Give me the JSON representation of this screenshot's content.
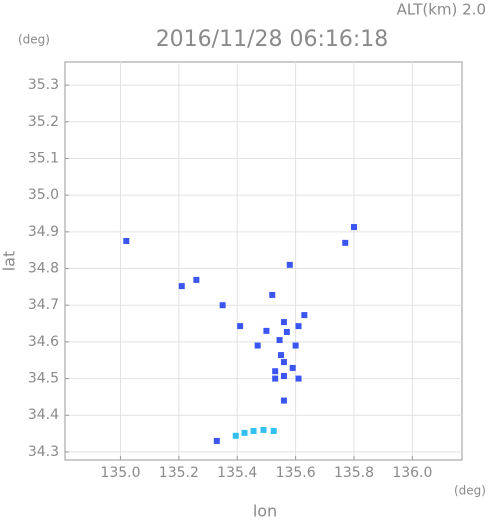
{
  "chart_data": {
    "type": "scatter",
    "title": "2016/11/28 06:16:18",
    "annotation": "ALT(km) 2.0",
    "xlabel": "lon",
    "ylabel": "lat",
    "x_unit": "(deg)",
    "y_unit": "(deg)",
    "xlim": [
      134.81,
      136.17
    ],
    "ylim": [
      34.278,
      35.363
    ],
    "xticks": [
      {
        "value": 135.0,
        "label": "135.0"
      },
      135.2,
      135.4,
      135.6,
      135.8,
      {
        "value": 136.0,
        "label": "136.0"
      }
    ],
    "yticks": [
      34.3,
      34.4,
      34.5,
      34.6,
      34.7,
      34.8,
      34.9,
      {
        "value": 35.0,
        "label": "35.0"
      },
      35.1,
      35.2,
      35.3
    ],
    "grid": true,
    "series": [
      {
        "color": "#3a55f0",
        "x": [
          135.02,
          135.21,
          135.26,
          135.8,
          135.77,
          135.58,
          135.35,
          135.52,
          135.5,
          135.56,
          135.545,
          135.55,
          135.57,
          135.61,
          135.63,
          135.53,
          135.56,
          135.56,
          135.53,
          135.59,
          135.61,
          135.41,
          135.47,
          135.6,
          135.56,
          135.33
        ],
        "values": [
          34.875,
          34.752,
          34.769,
          34.913,
          34.87,
          34.81,
          34.7,
          34.728,
          34.63,
          34.654,
          34.605,
          34.564,
          34.627,
          34.643,
          34.673,
          34.52,
          34.545,
          34.507,
          34.5,
          34.529,
          34.5,
          34.643,
          34.59,
          34.59,
          34.44,
          34.33
        ]
      },
      {
        "color": "#33c0f0",
        "x": [
          135.395,
          135.425,
          135.456,
          135.49,
          135.525
        ],
        "values": [
          34.344,
          34.352,
          34.357,
          34.36,
          34.357
        ]
      }
    ]
  }
}
